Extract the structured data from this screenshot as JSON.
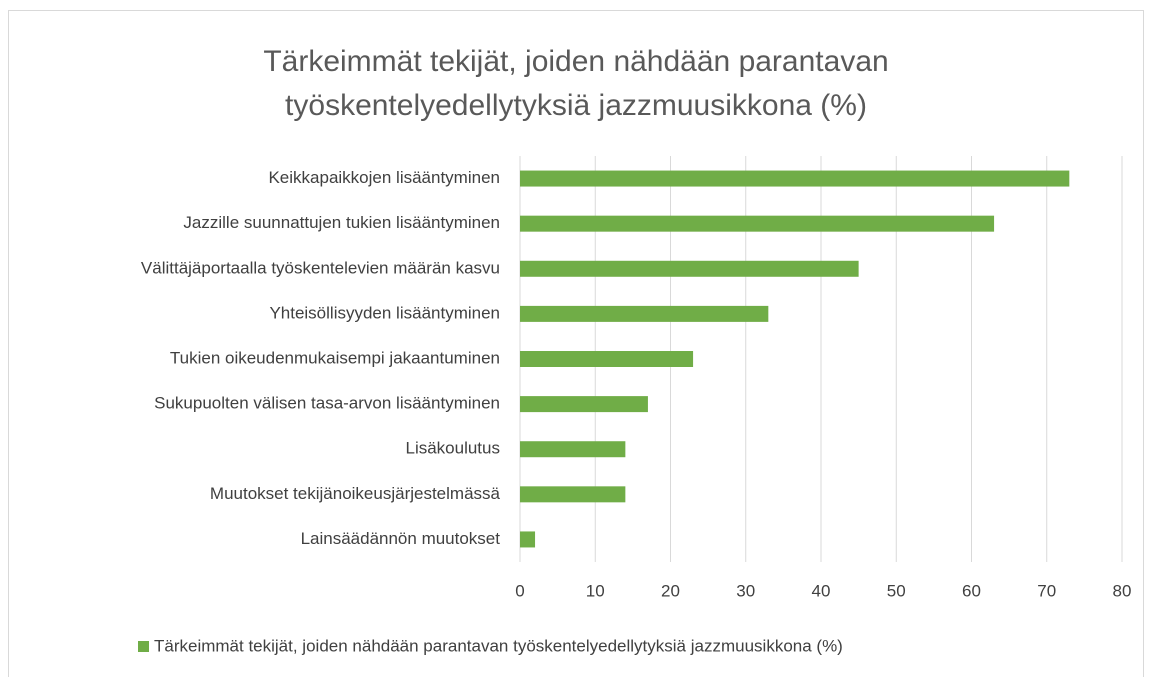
{
  "chart_data": {
    "type": "bar",
    "orientation": "horizontal",
    "title": "Tärkeimmät tekijät, joiden nähdään parantavan työskentelyedellytyksiä jazzmuusikkona (%)",
    "categories": [
      "Keikkapaikkojen lisääntyminen",
      "Jazzille suunnattujen tukien lisääntyminen",
      "Välittäjäportaalla työskentelevien määrän kasvu",
      "Yhteisöllisyyden lisääntyminen",
      "Tukien oikeudenmukaisempi jakaantuminen",
      "Sukupuolten välisen tasa-arvon lisääntyminen",
      "Lisäkoulutus",
      "Muutokset tekijänoikeusjärjestelmässä",
      "Lainsäädännön muutokset"
    ],
    "series": [
      {
        "name": "Tärkeimmät tekijät, joiden nähdään parantavan työskentelyedellytyksiä jazzmuusikkona (%)",
        "color": "#70ad47",
        "values": [
          73,
          63,
          45,
          33,
          23,
          17,
          14,
          14,
          2
        ]
      }
    ],
    "xlim": [
      0,
      80
    ],
    "xticks": [
      0,
      10,
      20,
      30,
      40,
      50,
      60,
      70,
      80
    ],
    "grid": true,
    "legend": "bottom"
  }
}
